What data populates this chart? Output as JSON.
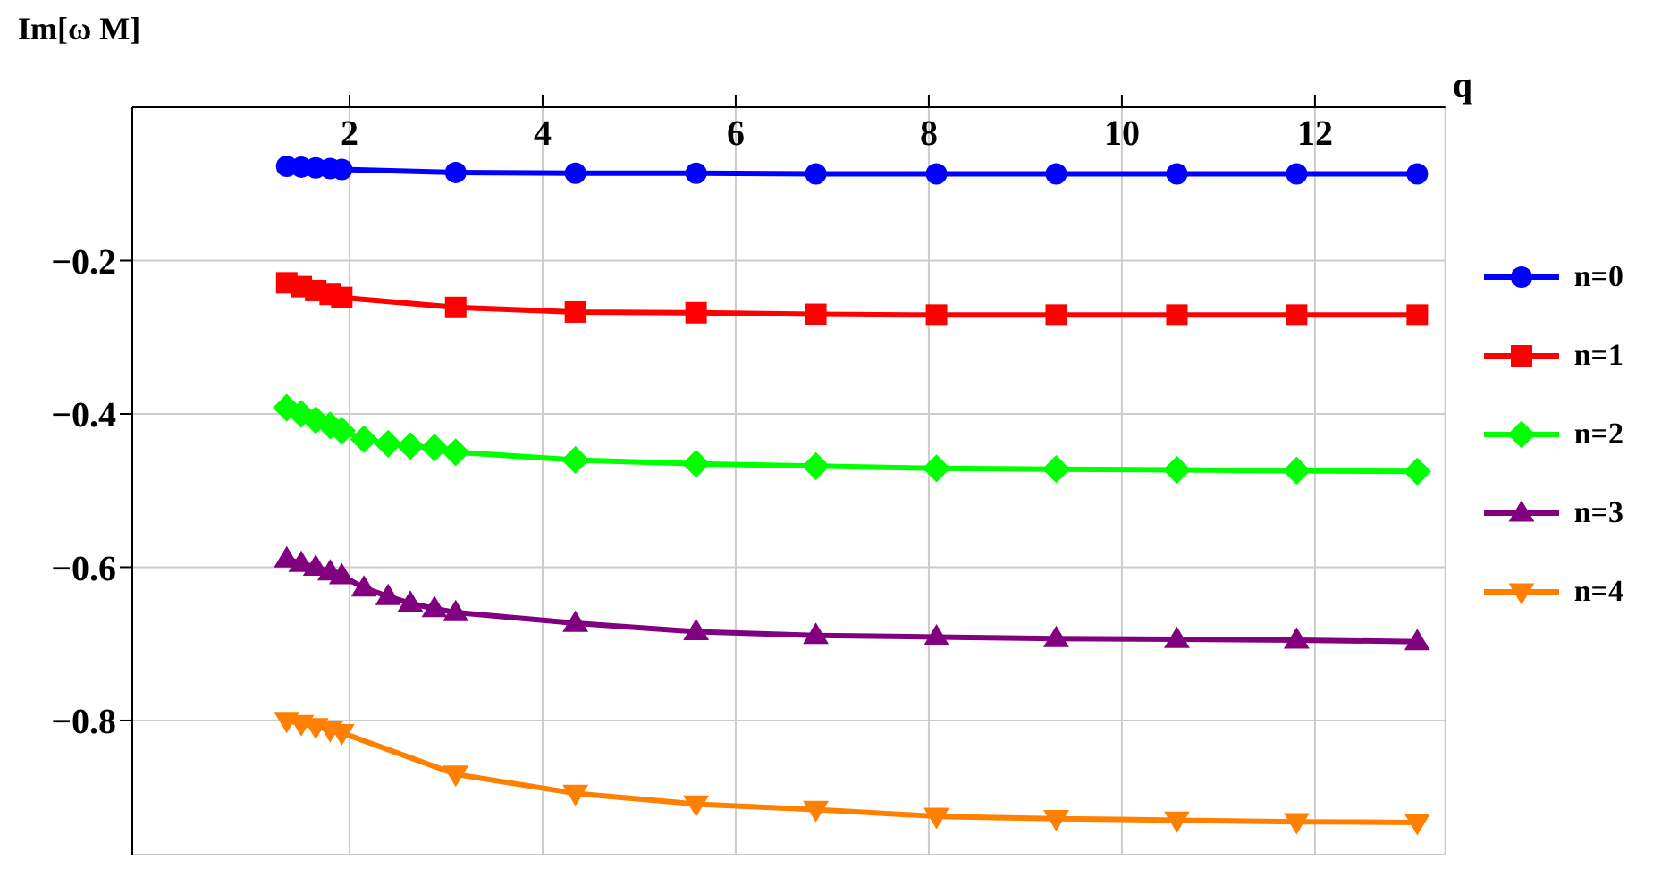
{
  "chart_data": {
    "type": "line",
    "xlabel": "q",
    "ylabel": "Im[ω M]",
    "xlim": [
      -0.25,
      13.35
    ],
    "ylim": [
      -0.975,
      0
    ],
    "xticks": [
      2,
      4,
      6,
      8,
      10,
      12
    ],
    "yticks": [
      -0.2,
      -0.4,
      -0.6,
      -0.8
    ],
    "grid": true,
    "legend": "right",
    "line_style": "solid",
    "series": [
      {
        "name": "n=0",
        "color": "#0000ff",
        "marker": "circle",
        "x": [
          1.35,
          1.5,
          1.65,
          1.8,
          1.92,
          3.1,
          4.34,
          5.59,
          6.83,
          8.08,
          9.32,
          10.57,
          11.81,
          13.06
        ],
        "values": [
          -0.077,
          -0.078,
          -0.079,
          -0.08,
          -0.081,
          -0.085,
          -0.086,
          -0.086,
          -0.087,
          -0.087,
          -0.087,
          -0.087,
          -0.087,
          -0.087
        ]
      },
      {
        "name": "n=1",
        "color": "#ff0000",
        "marker": "square",
        "x": [
          1.35,
          1.5,
          1.65,
          1.8,
          1.92,
          3.1,
          4.34,
          5.59,
          6.83,
          8.08,
          9.32,
          10.57,
          11.81,
          13.06
        ],
        "values": [
          -0.229,
          -0.234,
          -0.239,
          -0.244,
          -0.248,
          -0.261,
          -0.267,
          -0.268,
          -0.27,
          -0.271,
          -0.271,
          -0.271,
          -0.271,
          -0.271
        ]
      },
      {
        "name": "n=2",
        "color": "#00ff00",
        "marker": "diamond",
        "x": [
          1.35,
          1.5,
          1.65,
          1.8,
          1.92,
          2.15,
          2.4,
          2.63,
          2.88,
          3.1,
          4.34,
          5.59,
          6.83,
          8.08,
          9.32,
          10.57,
          11.81,
          13.06
        ],
        "values": [
          -0.392,
          -0.4,
          -0.408,
          -0.415,
          -0.422,
          -0.433,
          -0.439,
          -0.442,
          -0.444,
          -0.45,
          -0.46,
          -0.465,
          -0.468,
          -0.471,
          -0.472,
          -0.473,
          -0.474,
          -0.475
        ]
      },
      {
        "name": "n=3",
        "color": "#800080",
        "marker": "triangle",
        "x": [
          1.35,
          1.5,
          1.65,
          1.8,
          1.92,
          2.15,
          2.4,
          2.63,
          2.88,
          3.1,
          4.34,
          5.59,
          6.83,
          8.08,
          9.32,
          10.57,
          11.81,
          13.06
        ],
        "values": [
          -0.589,
          -0.595,
          -0.6,
          -0.606,
          -0.611,
          -0.627,
          -0.638,
          -0.647,
          -0.654,
          -0.659,
          -0.673,
          -0.684,
          -0.689,
          -0.691,
          -0.693,
          -0.694,
          -0.695,
          -0.697
        ]
      },
      {
        "name": "n=4",
        "color": "#ff8000",
        "marker": "triangle-down",
        "x": [
          1.35,
          1.5,
          1.65,
          1.8,
          1.92,
          3.1,
          4.34,
          5.59,
          6.83,
          8.08,
          9.32,
          10.57,
          11.81,
          13.06
        ],
        "values": [
          -0.8,
          -0.804,
          -0.808,
          -0.812,
          -0.816,
          -0.87,
          -0.895,
          -0.909,
          -0.916,
          -0.925,
          -0.928,
          -0.93,
          -0.932,
          -0.933
        ]
      }
    ]
  }
}
